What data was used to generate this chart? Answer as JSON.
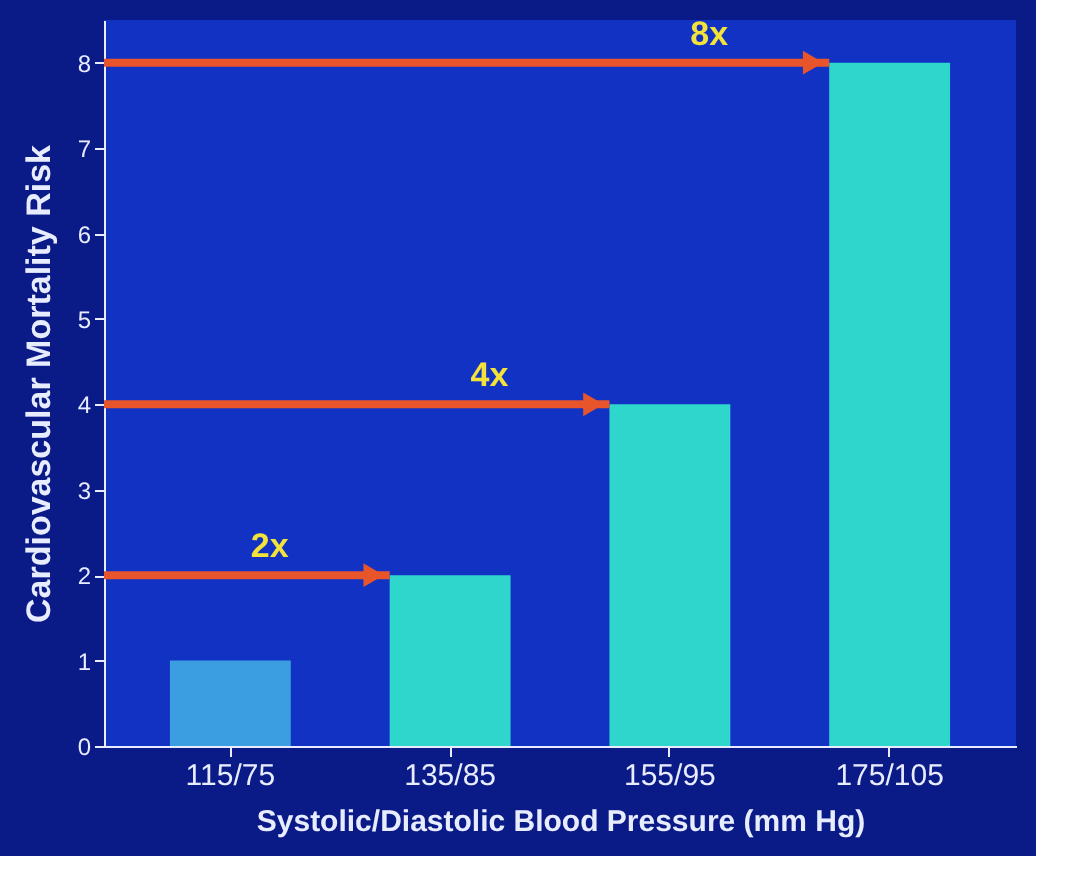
{
  "chart_data": {
    "type": "bar",
    "categories": [
      "115/75",
      "135/85",
      "155/95",
      "175/105"
    ],
    "values": [
      1,
      2,
      4,
      8
    ],
    "colors": [
      "#3a9ee0",
      "#2fd6cc",
      "#2fd6cc",
      "#2fd6cc"
    ],
    "xlabel": "Systolic/Diastolic Blood Pressure (mm Hg)",
    "ylabel": "Cardiovascular Mortality Risk",
    "ylim": [
      0,
      8.5
    ],
    "yticks": [
      0,
      1,
      2,
      3,
      4,
      5,
      6,
      7,
      8
    ],
    "grid": false,
    "ref_lines": [
      {
        "axis": "y",
        "value": 2,
        "label": "2x",
        "color": "#e8552b"
      },
      {
        "axis": "y",
        "value": 4,
        "label": "4x",
        "color": "#e8552b"
      },
      {
        "axis": "y",
        "value": 8,
        "label": "8x",
        "color": "#e8552b"
      }
    ]
  }
}
